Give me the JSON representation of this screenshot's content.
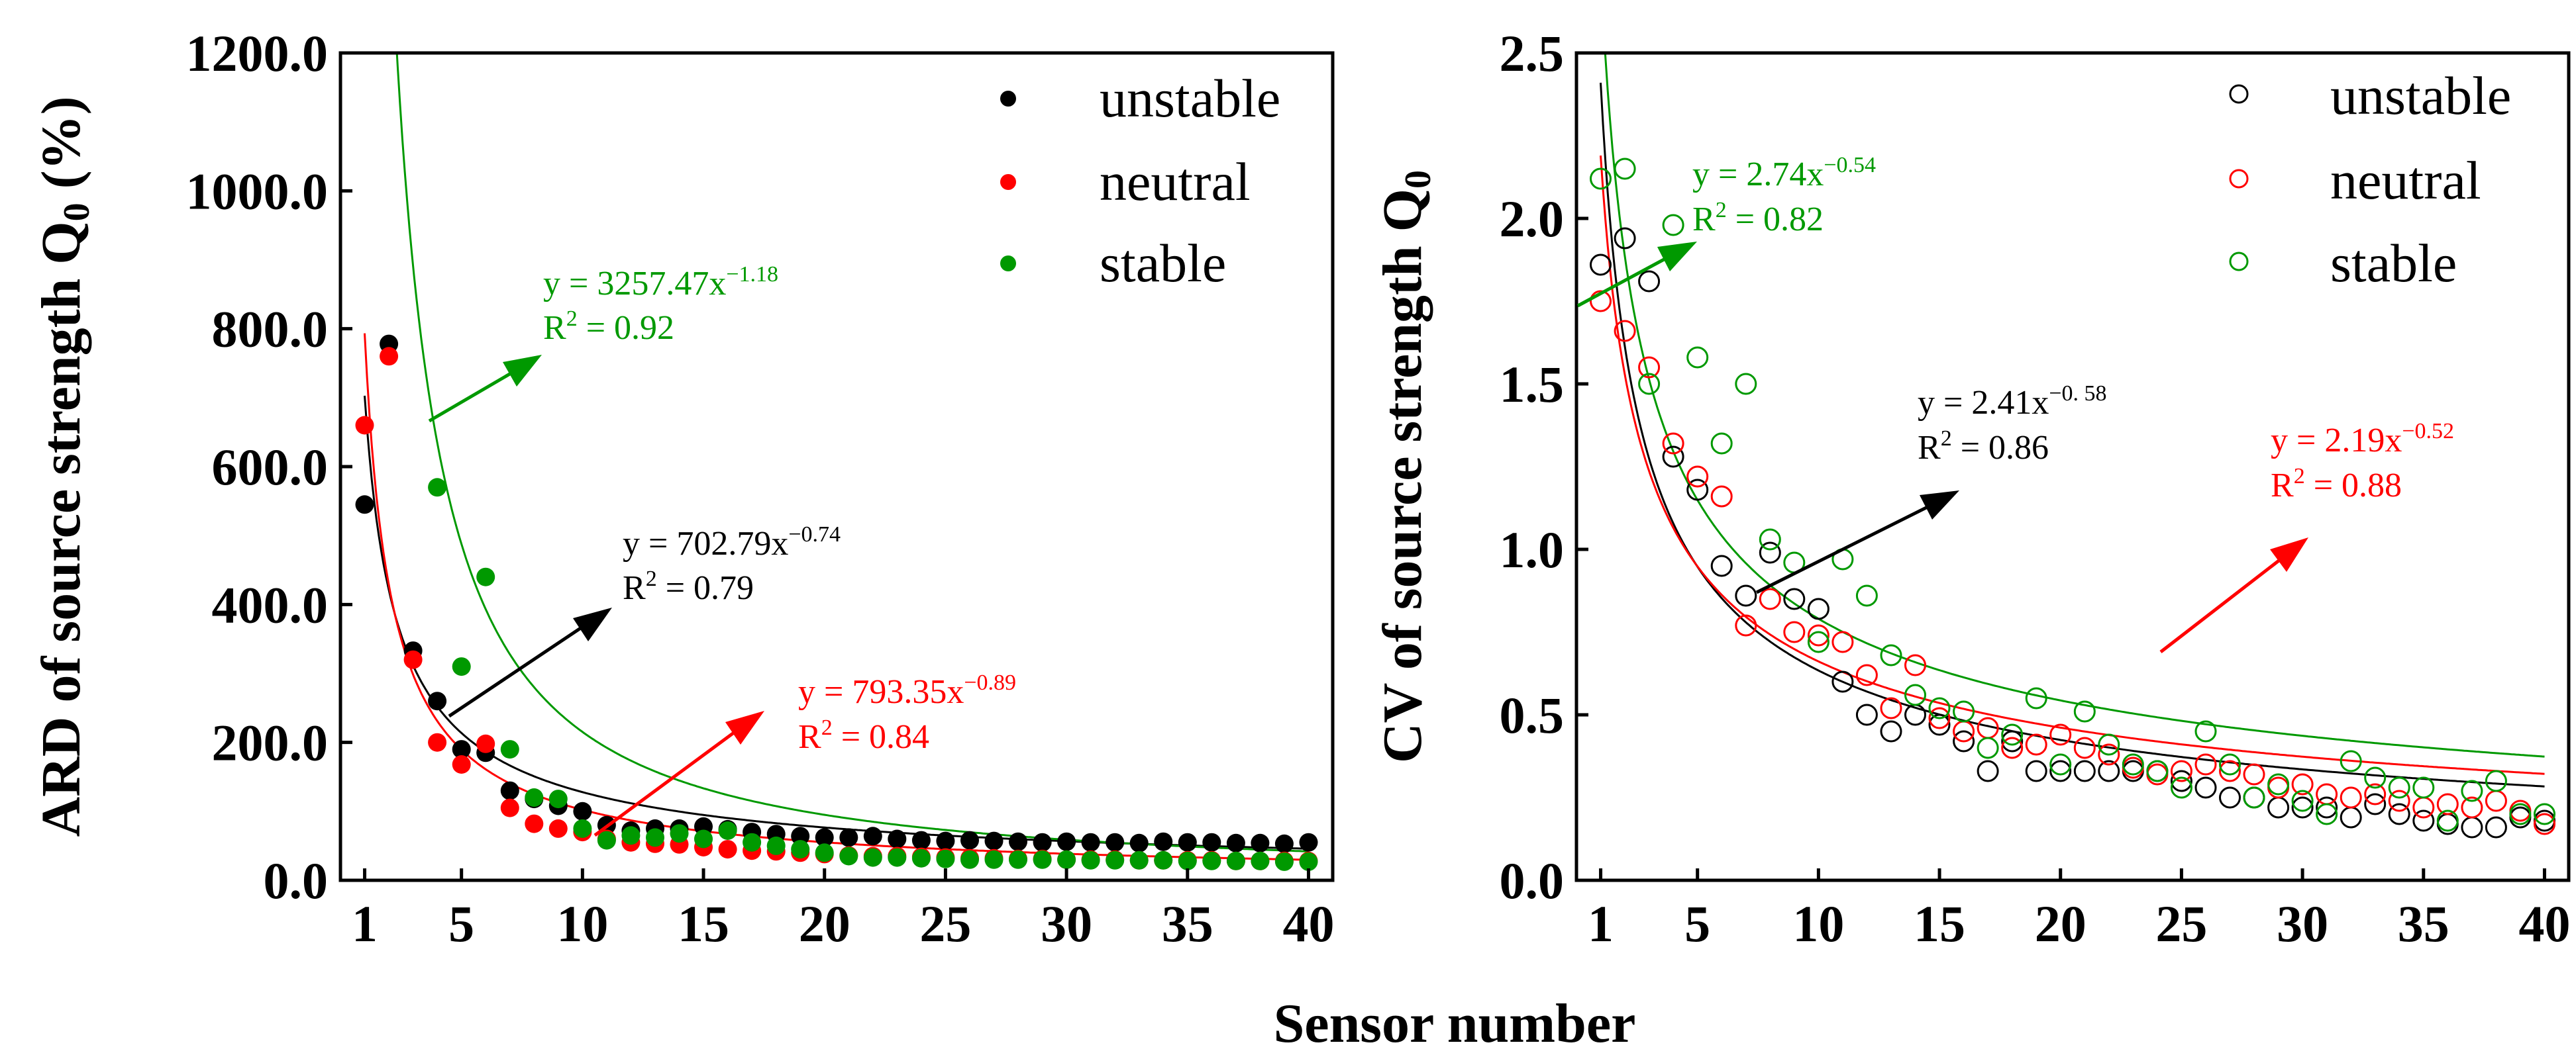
{
  "chart_data": [
    {
      "type": "scatter",
      "ylabel": "ARD of source strength Q",
      "ylabel_subscript": "0",
      "ylabel_suffix": " (%)",
      "xlabel": "Sensor number",
      "xlim": [
        0,
        41
      ],
      "ylim": [
        0,
        1200
      ],
      "xticks": [
        1,
        5,
        10,
        15,
        20,
        25,
        30,
        35,
        40
      ],
      "yticks": [
        0,
        200,
        400,
        600,
        800,
        1000,
        1200
      ],
      "ytick_labels": [
        "0.0",
        "200.0",
        "400.0",
        "600.0",
        "800.0",
        "1000.0",
        "1200.0"
      ],
      "marker": "filled",
      "legend_position": "top-right",
      "series": [
        {
          "name": "unstable",
          "color": "#000000",
          "x": [
            1,
            2,
            3,
            4,
            5,
            6,
            7,
            8,
            9,
            10,
            11,
            12,
            13,
            14,
            15,
            16,
            17,
            18,
            19,
            20,
            21,
            22,
            23,
            24,
            25,
            26,
            27,
            28,
            29,
            30,
            31,
            32,
            33,
            34,
            35,
            36,
            37,
            38,
            39,
            40
          ],
          "y": [
            545,
            778,
            333,
            260,
            190,
            185,
            130,
            118,
            108,
            100,
            80,
            72,
            75,
            75,
            78,
            74,
            70,
            67,
            64,
            62,
            62,
            64,
            60,
            58,
            57,
            58,
            57,
            56,
            55,
            56,
            55,
            55,
            54,
            56,
            55,
            55,
            54,
            54,
            53,
            55
          ],
          "fit": {
            "a": 702.79,
            "b": -0.74
          },
          "eq_text": "y = 702.79x",
          "eq_exponent": "−0.74",
          "r2_text": "R",
          "r2_value": " = 0.79"
        },
        {
          "name": "neutral",
          "color": "#ff0000",
          "x": [
            1,
            2,
            3,
            4,
            5,
            6,
            7,
            8,
            9,
            10,
            11,
            12,
            13,
            14,
            15,
            16,
            17,
            18,
            19,
            20,
            21,
            22,
            23,
            24,
            25,
            26,
            27,
            28,
            29,
            30,
            31,
            32,
            33,
            34,
            35,
            36,
            37,
            38,
            39,
            40
          ],
          "y": [
            660,
            760,
            320,
            200,
            168,
            198,
            105,
            82,
            75,
            70,
            60,
            55,
            53,
            52,
            48,
            45,
            43,
            42,
            40,
            38,
            36,
            35,
            35,
            34,
            33,
            32,
            32,
            31,
            31,
            30,
            30,
            30,
            29,
            29,
            29,
            29,
            28,
            28,
            28,
            28
          ],
          "fit": {
            "a": 793.35,
            "b": -0.89
          },
          "eq_text": "y = 793.35x",
          "eq_exponent": "−0.89",
          "r2_text": "R",
          "r2_value": " = 0.84"
        },
        {
          "name": "stable",
          "color": "#009900",
          "x": [
            4,
            5,
            6,
            7,
            8,
            9,
            10,
            11,
            12,
            13,
            14,
            15,
            16,
            17,
            18,
            19,
            20,
            21,
            22,
            23,
            24,
            25,
            26,
            27,
            28,
            29,
            30,
            31,
            32,
            33,
            34,
            35,
            36,
            37,
            38,
            39,
            40
          ],
          "y": [
            570,
            310,
            440,
            190,
            120,
            118,
            75,
            58,
            65,
            62,
            68,
            60,
            72,
            55,
            50,
            45,
            40,
            35,
            33,
            33,
            32,
            31,
            30,
            30,
            30,
            30,
            30,
            29,
            29,
            29,
            29,
            28,
            28,
            28,
            28,
            27,
            27
          ],
          "fit": {
            "a": 3257.47,
            "b": -1.18
          },
          "eq_text": "y = 3257.47x",
          "eq_exponent": "−1.18",
          "r2_text": "R",
          "r2_value": " = 0.92"
        }
      ]
    },
    {
      "type": "scatter",
      "ylabel": "CV of source strength Q",
      "ylabel_subscript": "0",
      "ylabel_suffix": "",
      "xlabel": "Sensor number",
      "xlim": [
        0,
        41
      ],
      "ylim": [
        0,
        2.5
      ],
      "xticks": [
        1,
        5,
        10,
        15,
        20,
        25,
        30,
        35,
        40
      ],
      "yticks": [
        0,
        0.5,
        1.0,
        1.5,
        2.0,
        2.5
      ],
      "ytick_labels": [
        "0.0",
        "0.5",
        "1.0",
        "1.5",
        "2.0",
        "2.5"
      ],
      "marker": "hollow",
      "legend_position": "top-right",
      "series": [
        {
          "name": "unstable",
          "color": "#000000",
          "x": [
            1,
            2,
            3,
            4,
            5,
            6,
            7,
            8,
            9,
            10,
            11,
            12,
            13,
            14,
            15,
            16,
            17,
            18,
            19,
            20,
            21,
            22,
            23,
            24,
            25,
            26,
            27,
            28,
            29,
            30,
            31,
            32,
            33,
            34,
            35,
            36,
            37,
            38,
            39,
            40
          ],
          "y": [
            1.86,
            1.94,
            1.81,
            1.28,
            1.18,
            0.95,
            0.86,
            0.99,
            0.85,
            0.82,
            0.6,
            0.5,
            0.45,
            0.5,
            0.47,
            0.42,
            0.33,
            0.42,
            0.33,
            0.33,
            0.33,
            0.33,
            0.33,
            0.33,
            0.3,
            0.28,
            0.25,
            0.25,
            0.22,
            0.22,
            0.22,
            0.19,
            0.23,
            0.2,
            0.18,
            0.17,
            0.16,
            0.16,
            0.19,
            0.18
          ],
          "fit": {
            "a": 2.41,
            "b": -0.58
          },
          "eq_text": "y = 2.41x",
          "eq_exponent": "−0. 58",
          "r2_text": "R",
          "r2_value": " = 0.86"
        },
        {
          "name": "neutral",
          "color": "#ff0000",
          "x": [
            1,
            2,
            3,
            4,
            5,
            6,
            7,
            8,
            9,
            10,
            11,
            12,
            13,
            14,
            15,
            16,
            17,
            18,
            19,
            20,
            21,
            22,
            23,
            24,
            25,
            26,
            27,
            28,
            29,
            30,
            31,
            32,
            33,
            34,
            35,
            36,
            37,
            38,
            39,
            40
          ],
          "y": [
            1.75,
            1.66,
            1.55,
            1.32,
            1.22,
            1.16,
            0.77,
            0.85,
            0.75,
            0.74,
            0.72,
            0.62,
            0.52,
            0.65,
            0.49,
            0.45,
            0.46,
            0.4,
            0.41,
            0.44,
            0.4,
            0.38,
            0.34,
            0.32,
            0.33,
            0.35,
            0.33,
            0.32,
            0.28,
            0.29,
            0.26,
            0.25,
            0.26,
            0.24,
            0.22,
            0.23,
            0.22,
            0.24,
            0.21,
            0.17
          ],
          "fit": {
            "a": 2.19,
            "b": -0.52
          },
          "eq_text": "y = 2.19x",
          "eq_exponent": "−0.52",
          "r2_text": "R",
          "r2_value": " = 0.88"
        },
        {
          "name": "stable",
          "color": "#009900",
          "x": [
            1,
            2,
            3,
            4,
            5,
            6,
            7,
            8,
            9,
            10,
            11,
            12,
            13,
            14,
            15,
            16,
            17,
            18,
            19,
            20,
            21,
            22,
            23,
            24,
            25,
            26,
            27,
            28,
            29,
            30,
            31,
            32,
            33,
            34,
            35,
            36,
            37,
            38,
            39,
            40
          ],
          "y": [
            2.12,
            2.15,
            1.5,
            1.98,
            1.58,
            1.32,
            1.5,
            1.03,
            0.96,
            0.72,
            0.97,
            0.86,
            0.68,
            0.56,
            0.52,
            0.51,
            0.4,
            0.44,
            0.55,
            0.35,
            0.51,
            0.41,
            0.35,
            0.33,
            0.28,
            0.45,
            0.35,
            0.25,
            0.29,
            0.24,
            0.2,
            0.36,
            0.31,
            0.28,
            0.28,
            0.18,
            0.27,
            0.3,
            0.2,
            0.2
          ],
          "fit": {
            "a": 2.74,
            "b": -0.54
          },
          "eq_text": "y = 2.74x",
          "eq_exponent": "−0.54",
          "r2_text": "R",
          "r2_value": " = 0.82"
        }
      ]
    }
  ]
}
